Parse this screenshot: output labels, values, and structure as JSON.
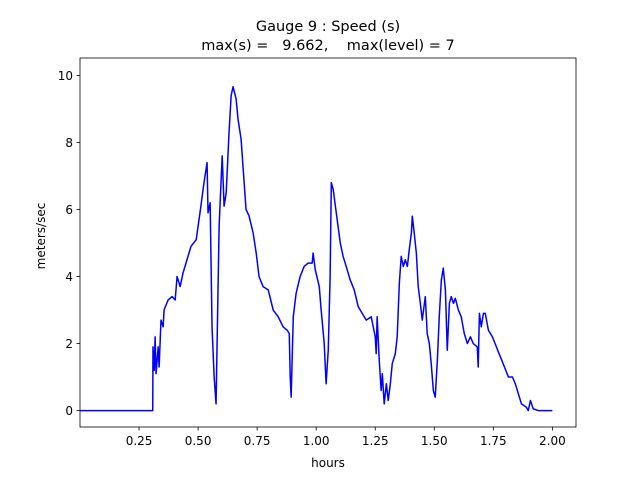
{
  "chart_data": {
    "type": "line",
    "title": "Gauge 9 : Speed (s)",
    "subtitle": "max(s) =   9.662,    max(level) = 7",
    "x_label": "hours",
    "y_label": "meters/sec",
    "xlim": [
      0,
      2.1
    ],
    "ylim": [
      -0.49,
      10.52
    ],
    "xticks": [
      0.25,
      {
        "value": 0.5,
        "label": "0.50"
      },
      0.75,
      {
        "value": 1,
        "label": "1.00"
      },
      1.25,
      {
        "value": 1.5,
        "label": "1.50"
      },
      1.75,
      {
        "value": 2,
        "label": "2.00"
      }
    ],
    "yticks": [
      0,
      2,
      4,
      6,
      8,
      10
    ],
    "grid": false,
    "x": [
      0,
      0.308,
      0.309,
      0.314,
      0.318,
      0.322,
      0.331,
      0.335,
      0.343,
      0.352,
      0.356,
      0.373,
      0.39,
      0.403,
      0.411,
      0.424,
      0.436,
      0.453,
      0.47,
      0.492,
      0.508,
      0.525,
      0.538,
      0.542,
      0.551,
      0.559,
      0.568,
      0.576,
      0.589,
      0.602,
      0.61,
      0.619,
      0.631,
      0.64,
      0.648,
      0.661,
      0.669,
      0.682,
      0.691,
      0.703,
      0.716,
      0.733,
      0.746,
      0.758,
      0.775,
      0.797,
      0.818,
      0.839,
      0.86,
      0.877,
      0.886,
      0.89,
      0.894,
      0.903,
      0.915,
      0.932,
      0.949,
      0.966,
      0.983,
      0.987,
      0.996,
      1.013,
      1.021,
      1.034,
      1.042,
      1.051,
      1.059,
      1.064,
      1.072,
      1.085,
      1.102,
      1.114,
      1.127,
      1.144,
      1.161,
      1.178,
      1.195,
      1.212,
      1.233,
      1.25,
      1.254,
      1.258,
      1.267,
      1.275,
      1.28,
      1.288,
      1.297,
      1.305,
      1.314,
      1.322,
      1.335,
      1.343,
      1.352,
      1.36,
      1.369,
      1.377,
      1.386,
      1.394,
      1.403,
      1.407,
      1.415,
      1.424,
      1.432,
      1.441,
      1.449,
      1.462,
      1.47,
      1.479,
      1.487,
      1.496,
      1.504,
      1.513,
      1.521,
      1.53,
      1.538,
      1.547,
      1.555,
      1.564,
      1.572,
      1.581,
      1.589,
      1.602,
      1.614,
      1.627,
      1.64,
      1.653,
      1.665,
      1.682,
      1.686,
      1.691,
      1.699,
      1.708,
      1.716,
      1.729,
      1.746,
      1.763,
      1.78,
      1.797,
      1.814,
      1.831,
      1.843,
      1.856,
      1.869,
      1.89,
      1.898,
      1.907,
      1.919,
      1.941,
      2.0
    ],
    "series": [
      {
        "name": "s",
        "color": "#0000ff",
        "values": [
          0,
          0,
          1.9,
          1.2,
          2.2,
          1.1,
          1.9,
          1.3,
          2.7,
          2.5,
          3.0,
          3.3,
          3.4,
          3.3,
          4.0,
          3.7,
          4.1,
          4.5,
          4.9,
          5.1,
          5.9,
          6.8,
          7.4,
          5.9,
          6.2,
          2.5,
          1.0,
          0.2,
          5.5,
          7.6,
          6.1,
          6.5,
          8.3,
          9.4,
          9.662,
          9.3,
          8.7,
          8.1,
          7.2,
          6.0,
          5.8,
          5.3,
          4.7,
          4.0,
          3.7,
          3.6,
          3.0,
          2.8,
          2.5,
          2.4,
          2.3,
          1.0,
          0.4,
          2.8,
          3.5,
          4.0,
          4.3,
          4.4,
          4.4,
          4.7,
          4.2,
          3.7,
          3.0,
          2.0,
          0.8,
          1.8,
          4.0,
          6.8,
          6.6,
          5.9,
          5.0,
          4.6,
          4.3,
          3.9,
          3.6,
          3.1,
          2.9,
          2.7,
          2.8,
          2.2,
          1.7,
          2.8,
          1.5,
          0.6,
          1.1,
          0.2,
          0.8,
          0.3,
          0.8,
          1.4,
          1.7,
          2.2,
          3.8,
          4.6,
          4.3,
          4.5,
          4.3,
          4.8,
          5.3,
          5.8,
          5.3,
          4.7,
          3.7,
          3.2,
          2.7,
          3.4,
          2.3,
          2.0,
          1.4,
          0.6,
          0.4,
          1.5,
          2.8,
          3.9,
          4.25,
          3.6,
          1.8,
          3.2,
          3.4,
          3.2,
          3.35,
          3.0,
          2.8,
          2.3,
          2.0,
          2.2,
          2.0,
          1.9,
          1.3,
          2.9,
          2.5,
          2.9,
          2.9,
          2.4,
          2.2,
          1.9,
          1.6,
          1.3,
          1.0,
          1.0,
          0.8,
          0.5,
          0.2,
          0.1,
          0.0,
          0.3,
          0.05,
          0.0,
          0.0
        ]
      }
    ]
  }
}
